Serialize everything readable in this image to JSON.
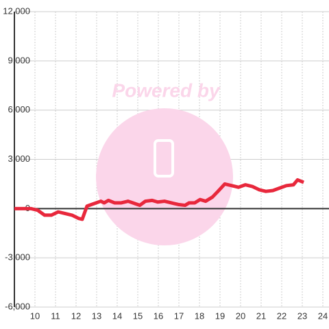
{
  "chart_data": {
    "type": "line",
    "watermark": "Powered by",
    "color": "#e8283c",
    "x": [
      9.0,
      9.47,
      9.8,
      10.13,
      10.47,
      10.8,
      11.13,
      11.47,
      11.8,
      12.13,
      12.3,
      12.53,
      12.87,
      13.2,
      13.37,
      13.57,
      13.87,
      14.2,
      14.53,
      14.87,
      15.1,
      15.37,
      15.7,
      15.97,
      16.3,
      16.63,
      16.97,
      17.3,
      17.5,
      17.77,
      18.03,
      18.3,
      18.63,
      18.9,
      19.23,
      19.57,
      19.9,
      20.23,
      20.57,
      20.9,
      21.23,
      21.57,
      21.9,
      22.23,
      22.57,
      22.77,
      23.07
    ],
    "values": [
      0,
      0,
      0,
      -100,
      -400,
      -400,
      -200,
      -300,
      -400,
      -600,
      -650,
      150,
      300,
      450,
      350,
      500,
      350,
      350,
      450,
      300,
      200,
      450,
      500,
      400,
      450,
      350,
      250,
      200,
      350,
      350,
      550,
      450,
      700,
      1050,
      1500,
      1400,
      1300,
      1450,
      1350,
      1150,
      1050,
      1100,
      1250,
      1400,
      1450,
      1750,
      1600
    ],
    "xlim": [
      9,
      24.3
    ],
    "xticks": [
      10,
      11,
      12,
      13,
      14,
      15,
      16,
      17,
      18,
      19,
      20,
      21,
      22,
      23,
      24
    ],
    "ylim": [
      -6000,
      12000
    ],
    "yticks": [
      {
        "value": -6000,
        "label": "-6,000"
      },
      {
        "value": -3000,
        "label": "-3,000"
      },
      0,
      {
        "value": 3000,
        "label": "3,000"
      },
      {
        "value": 6000,
        "label": "6,000"
      },
      {
        "value": 9000,
        "label": "9,000"
      },
      {
        "value": 12000,
        "label": "12,000"
      }
    ],
    "grid": true
  }
}
